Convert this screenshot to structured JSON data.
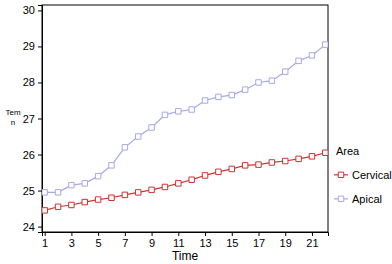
{
  "chart_data": {
    "type": "line",
    "x_label": "Time",
    "y_label": "Tem\nn",
    "legend_title": "Area",
    "legend": "right",
    "x": [
      1,
      2,
      3,
      4,
      5,
      6,
      7,
      8,
      9,
      10,
      11,
      12,
      13,
      14,
      15,
      16,
      17,
      18,
      19,
      20,
      21,
      22
    ],
    "series": [
      {
        "name": "Cervical",
        "color": "#cc3333",
        "marker": "square",
        "line_style": "solid",
        "values": [
          24.45,
          24.55,
          24.6,
          24.68,
          24.75,
          24.8,
          24.88,
          24.95,
          25.02,
          25.1,
          25.2,
          25.3,
          25.42,
          25.52,
          25.6,
          25.7,
          25.72,
          25.78,
          25.82,
          25.88,
          25.95,
          26.05
        ]
      },
      {
        "name": "Apical",
        "color": "#a8a8e8",
        "marker": "square",
        "line_style": "solid",
        "values": [
          24.95,
          24.95,
          25.15,
          25.2,
          25.4,
          25.7,
          26.2,
          26.5,
          26.75,
          27.1,
          27.2,
          27.25,
          27.5,
          27.6,
          27.65,
          27.8,
          28.0,
          28.05,
          28.3,
          28.6,
          28.75,
          29.05
        ]
      }
    ],
    "xlim": [
      0.8,
      22.2
    ],
    "xticks": [
      1,
      3,
      5,
      7,
      9,
      11,
      13,
      15,
      17,
      19,
      21
    ],
    "ylim": [
      23.85,
      30.15
    ],
    "yticks": [
      24,
      25,
      26,
      27,
      28,
      29,
      30
    ],
    "grid": false
  }
}
